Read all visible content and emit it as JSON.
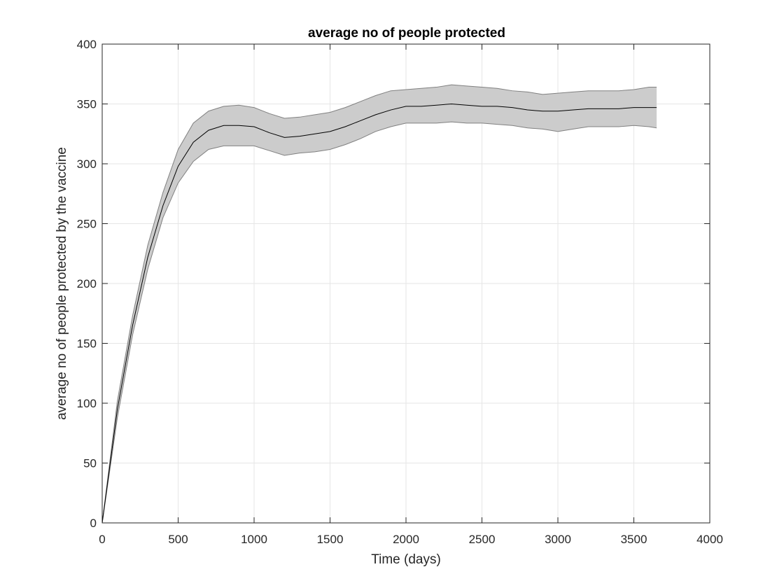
{
  "chart_data": {
    "type": "line",
    "title": "average no of people protected",
    "xlabel": "Time (days)",
    "ylabel": "average no of people protected by the vaccine",
    "xlim": [
      0,
      4000
    ],
    "ylim": [
      0,
      400
    ],
    "xticks": [
      0,
      500,
      1000,
      1500,
      2000,
      2500,
      3000,
      3500,
      4000
    ],
    "yticks": [
      0,
      50,
      100,
      150,
      200,
      250,
      300,
      350,
      400
    ],
    "xtick_labels": [
      "0",
      "500",
      "1000",
      "1500",
      "2000",
      "2500",
      "3000",
      "3500",
      "4000"
    ],
    "ytick_labels": [
      "0",
      "50",
      "100",
      "150",
      "200",
      "250",
      "300",
      "350",
      "400"
    ],
    "grid": true,
    "series": [
      {
        "kind": "mean-line",
        "color": "#000000",
        "x": [
          0,
          100,
          200,
          300,
          400,
          500,
          600,
          700,
          800,
          900,
          1000,
          1100,
          1200,
          1300,
          1400,
          1500,
          1600,
          1700,
          1800,
          1900,
          2000,
          2100,
          2200,
          2300,
          2400,
          2500,
          2600,
          2700,
          2800,
          2900,
          3000,
          3100,
          3200,
          3300,
          3400,
          3500,
          3600,
          3650
        ],
        "y": [
          0,
          95,
          165,
          222,
          265,
          298,
          318,
          328,
          332,
          332,
          331,
          326,
          322,
          323,
          325,
          327,
          331,
          336,
          341,
          345,
          348,
          348,
          349,
          350,
          349,
          348,
          348,
          347,
          345,
          344,
          344,
          345,
          346,
          346,
          346,
          347,
          347,
          347
        ]
      },
      {
        "kind": "confidence-band",
        "color": "#cccccc",
        "edge_color": "#808080",
        "x": [
          0,
          100,
          200,
          300,
          400,
          500,
          600,
          700,
          800,
          900,
          1000,
          1100,
          1200,
          1300,
          1400,
          1500,
          1600,
          1700,
          1800,
          1900,
          2000,
          2100,
          2200,
          2300,
          2400,
          2500,
          2600,
          2700,
          2800,
          2900,
          3000,
          3100,
          3200,
          3300,
          3400,
          3500,
          3600,
          3650
        ],
        "upper": [
          0,
          102,
          173,
          232,
          276,
          312,
          334,
          344,
          348,
          349,
          347,
          342,
          338,
          339,
          341,
          343,
          347,
          352,
          357,
          361,
          362,
          363,
          364,
          366,
          365,
          364,
          363,
          361,
          360,
          358,
          359,
          360,
          361,
          361,
          361,
          362,
          364,
          364
        ],
        "lower": [
          0,
          88,
          157,
          212,
          255,
          284,
          302,
          312,
          315,
          315,
          315,
          311,
          307,
          309,
          310,
          312,
          316,
          321,
          327,
          331,
          334,
          334,
          334,
          335,
          334,
          334,
          333,
          332,
          330,
          329,
          327,
          329,
          331,
          331,
          331,
          332,
          331,
          330
        ]
      }
    ]
  }
}
